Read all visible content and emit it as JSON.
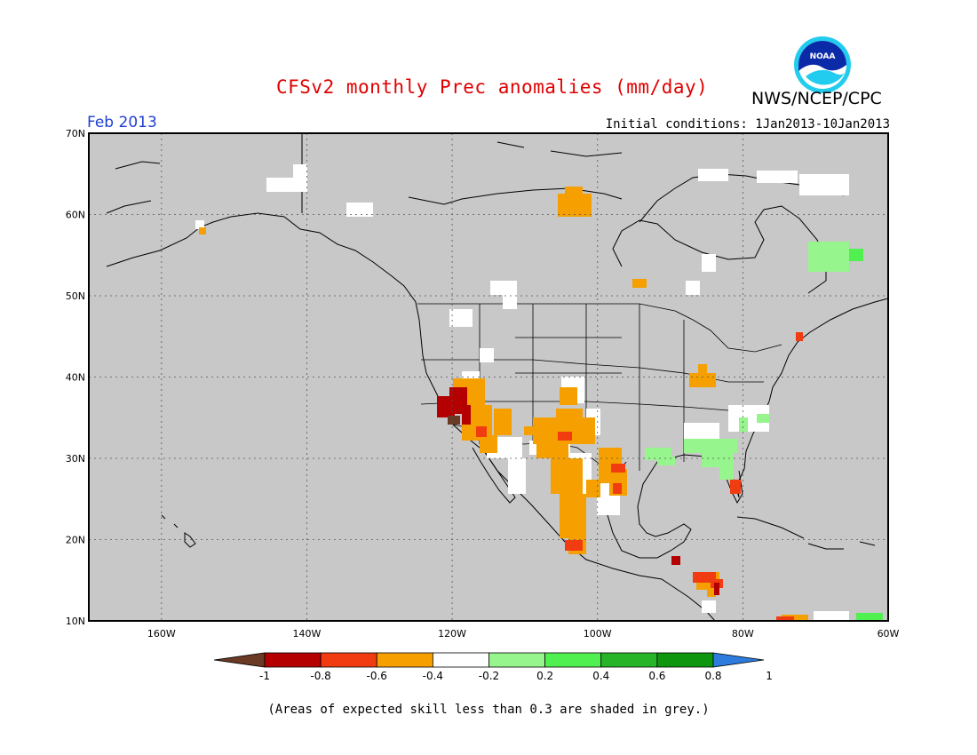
{
  "header": {
    "title": "CFSv2 monthly Prec anomalies (mm/day)",
    "organization": "NWS/NCEP/CPC",
    "logo_text": "NOAA",
    "valid_month": "Feb 2013",
    "initial_conditions": "Initial conditions: 1Jan2013-10Jan2013"
  },
  "map": {
    "background_color": "#c8c8c8",
    "lon_range": [
      -170,
      -60
    ],
    "lat_range": [
      10,
      70
    ],
    "lat_labels": [
      "70N",
      "60N",
      "50N",
      "40N",
      "30N",
      "20N",
      "10N"
    ],
    "lon_labels": [
      "160W",
      "140W",
      "120W",
      "100W",
      "80W",
      "60W"
    ]
  },
  "legend": {
    "labels": [
      "-1",
      "-0.8",
      "-0.6",
      "-0.4",
      "-0.2",
      "0.2",
      "0.4",
      "0.6",
      "0.8",
      "1"
    ],
    "colors": [
      "#6b3a25",
      "#b40000",
      "#f03c10",
      "#f5a000",
      "#ffffff",
      "#96f58c",
      "#50f050",
      "#28b428",
      "#0f960f",
      "#2d7bdc"
    ]
  },
  "footnote": "(Areas of expected skill less than 0.3 are shaded in grey.)"
}
